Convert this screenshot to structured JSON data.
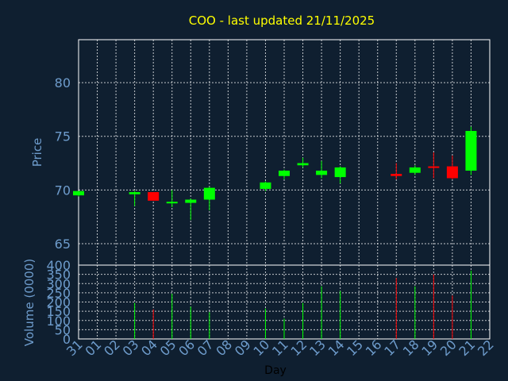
{
  "chart_data": {
    "type": "candlestick",
    "title": "COO - last updated 21/11/2025",
    "xlabel": "Day",
    "x_ticks": [
      "31",
      "01",
      "02",
      "03",
      "04",
      "05",
      "06",
      "07",
      "08",
      "09",
      "10",
      "11",
      "12",
      "13",
      "14",
      "15",
      "16",
      "17",
      "18",
      "19",
      "20",
      "21",
      "22"
    ],
    "colors": {
      "up": "#00ff00",
      "down": "#ff0000",
      "background": "#0f1f30",
      "title": "#ffff00",
      "axis": "#6e9ccc"
    },
    "price_panel": {
      "ylabel": "Price",
      "ylim": [
        63,
        84
      ],
      "y_ticks": [
        65,
        70,
        75,
        80
      ],
      "grid": true
    },
    "volume_panel": {
      "ylabel": "Volume (0000)",
      "ylim": [
        0,
        400
      ],
      "y_ticks": [
        0,
        50,
        100,
        150,
        200,
        250,
        300,
        350,
        400
      ],
      "grid": true
    },
    "candles": [
      {
        "day": "31",
        "open": 69.5,
        "high": 69.9,
        "low": 69.4,
        "close": 69.9,
        "volume": 0
      },
      {
        "day": "03",
        "open": 69.6,
        "high": 69.9,
        "low": 68.5,
        "close": 69.8,
        "volume": 195
      },
      {
        "day": "04",
        "open": 69.8,
        "high": 69.8,
        "low": 69.0,
        "close": 69.0,
        "volume": 160
      },
      {
        "day": "05",
        "open": 68.8,
        "high": 70.0,
        "low": 68.4,
        "close": 68.9,
        "volume": 245
      },
      {
        "day": "06",
        "open": 68.8,
        "high": 69.2,
        "low": 67.2,
        "close": 69.1,
        "volume": 175
      },
      {
        "day": "07",
        "open": 69.1,
        "high": 70.3,
        "low": 68.1,
        "close": 70.2,
        "volume": 145
      },
      {
        "day": "10",
        "open": 70.1,
        "high": 70.8,
        "low": 69.9,
        "close": 70.7,
        "volume": 165
      },
      {
        "day": "11",
        "open": 71.3,
        "high": 71.9,
        "low": 71.0,
        "close": 71.8,
        "volume": 110
      },
      {
        "day": "12",
        "open": 72.3,
        "high": 73.0,
        "low": 72.1,
        "close": 72.5,
        "volume": 195
      },
      {
        "day": "13",
        "open": 71.4,
        "high": 72.7,
        "low": 71.1,
        "close": 71.8,
        "volume": 285
      },
      {
        "day": "14",
        "open": 71.2,
        "high": 72.2,
        "low": 70.6,
        "close": 72.1,
        "volume": 260
      },
      {
        "day": "17",
        "open": 71.5,
        "high": 72.5,
        "low": 71.0,
        "close": 71.3,
        "volume": 330
      },
      {
        "day": "18",
        "open": 71.6,
        "high": 72.3,
        "low": 71.4,
        "close": 72.1,
        "volume": 285
      },
      {
        "day": "19",
        "open": 72.2,
        "high": 73.5,
        "low": 71.1,
        "close": 72.1,
        "volume": 350
      },
      {
        "day": "20",
        "open": 72.2,
        "high": 73.2,
        "low": 71.0,
        "close": 71.1,
        "volume": 235
      },
      {
        "day": "21",
        "open": 71.8,
        "high": 75.9,
        "low": 71.4,
        "close": 75.5,
        "volume": 370
      }
    ]
  }
}
